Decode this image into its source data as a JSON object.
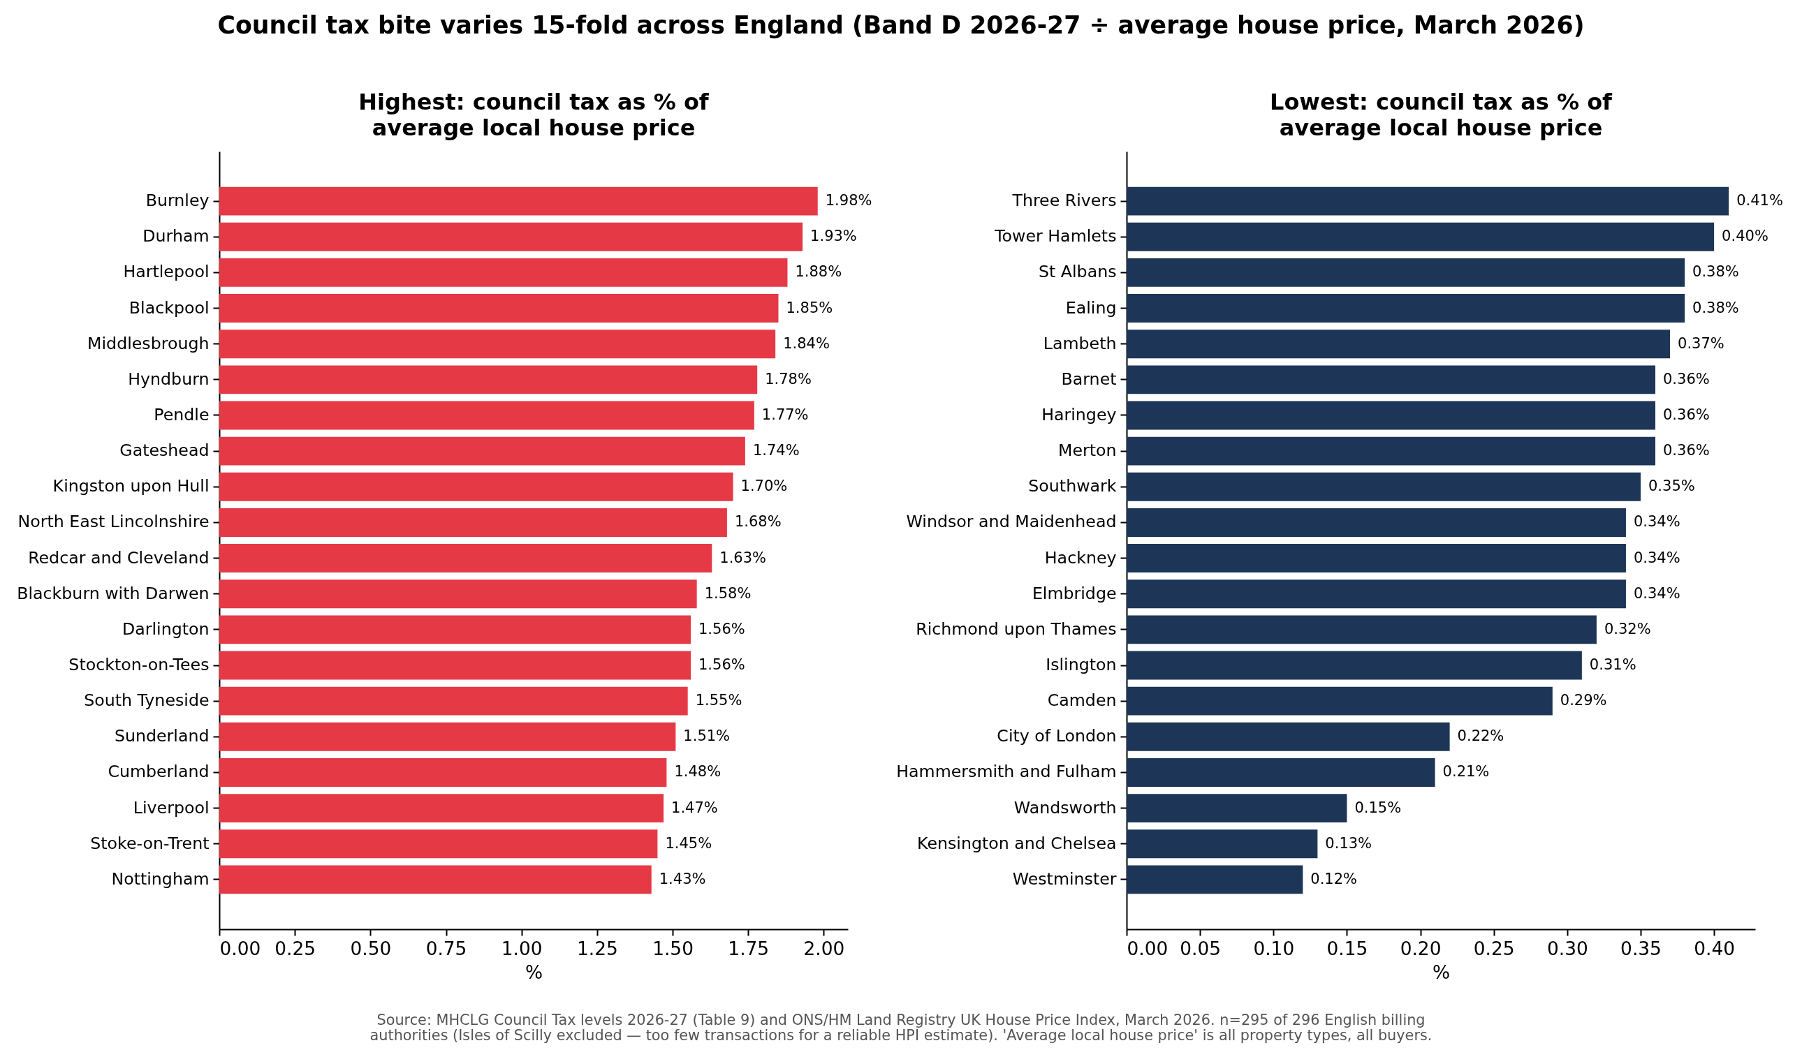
{
  "chart_data": [
    {
      "type": "bar",
      "orientation": "horizontal",
      "title": "Highest: council tax as % of\naverage local house price",
      "xlabel": "%",
      "categories": [
        "Burnley",
        "Durham",
        "Hartlepool",
        "Blackpool",
        "Middlesbrough",
        "Hyndburn",
        "Pendle",
        "Gateshead",
        "Kingston upon Hull",
        "North East Lincolnshire",
        "Redcar and Cleveland",
        "Blackburn with Darwen",
        "Darlington",
        "Stockton-on-Tees",
        "South Tyneside",
        "Sunderland",
        "Cumberland",
        "Liverpool",
        "Stoke-on-Trent",
        "Nottingham"
      ],
      "values": [
        1.98,
        1.93,
        1.88,
        1.85,
        1.84,
        1.78,
        1.77,
        1.74,
        1.7,
        1.68,
        1.63,
        1.58,
        1.56,
        1.56,
        1.55,
        1.51,
        1.48,
        1.47,
        1.45,
        1.43
      ],
      "value_labels": [
        "1.98%",
        "1.93%",
        "1.88%",
        "1.85%",
        "1.84%",
        "1.78%",
        "1.77%",
        "1.74%",
        "1.70%",
        "1.68%",
        "1.63%",
        "1.58%",
        "1.56%",
        "1.56%",
        "1.55%",
        "1.51%",
        "1.48%",
        "1.47%",
        "1.45%",
        "1.43%"
      ],
      "color": "#e63946",
      "xlim": [
        0,
        2.08
      ],
      "xticks": [
        {
          "value": 0,
          "label": "0.00"
        },
        0.25,
        {
          "value": 0.5,
          "label": "0.50"
        },
        0.75,
        {
          "value": 1,
          "label": "1.00"
        },
        1.25,
        {
          "value": 1.5,
          "label": "1.50"
        },
        1.75,
        {
          "value": 2,
          "label": "2.00"
        }
      ],
      "annotations": [
        "Council tax bite varies 15-fold across England (Band D 2026-27 ÷ average house price, March 2026)",
        "Source: MHCLG Council Tax levels 2026-27 (Table 9) and ONS/HM Land Registry UK House Price Index, March 2026. n=295 of 296 English billing\nauthorities (Isles of Scilly excluded — too few transactions for a reliable HPI estimate). 'Average local house price' is all property types, all buyers."
      ]
    },
    {
      "type": "bar",
      "orientation": "horizontal",
      "title": "Lowest: council tax as % of\naverage local house price",
      "xlabel": "%",
      "categories": [
        "Three Rivers",
        "Tower Hamlets",
        "St Albans",
        "Ealing",
        "Lambeth",
        "Barnet",
        "Haringey",
        "Merton",
        "Southwark",
        "Windsor and Maidenhead",
        "Hackney",
        "Elmbridge",
        "Richmond upon Thames",
        "Islington",
        "Camden",
        "City of London",
        "Hammersmith and Fulham",
        "Wandsworth",
        "Kensington and Chelsea",
        "Westminster"
      ],
      "values": [
        0.41,
        0.4,
        0.38,
        0.38,
        0.37,
        0.36,
        0.36,
        0.36,
        0.35,
        0.34,
        0.34,
        0.34,
        0.32,
        0.31,
        0.29,
        0.22,
        0.21,
        0.15,
        0.13,
        0.12
      ],
      "value_labels": [
        "0.41%",
        "0.40%",
        "0.38%",
        "0.38%",
        "0.37%",
        "0.36%",
        "0.36%",
        "0.36%",
        "0.35%",
        "0.34%",
        "0.34%",
        "0.34%",
        "0.32%",
        "0.31%",
        "0.29%",
        "0.22%",
        "0.21%",
        "0.15%",
        "0.13%",
        "0.12%"
      ],
      "color": "#1d3557",
      "xlim": [
        0,
        0.428
      ],
      "xticks": [
        {
          "value": 0,
          "label": "0.00"
        },
        0.05,
        {
          "value": 0.1,
          "label": "0.10"
        },
        0.15,
        {
          "value": 0.2,
          "label": "0.20"
        },
        0.25,
        {
          "value": 0.3,
          "label": "0.30"
        },
        0.35,
        {
          "value": 0.4,
          "label": "0.40"
        }
      ]
    }
  ]
}
